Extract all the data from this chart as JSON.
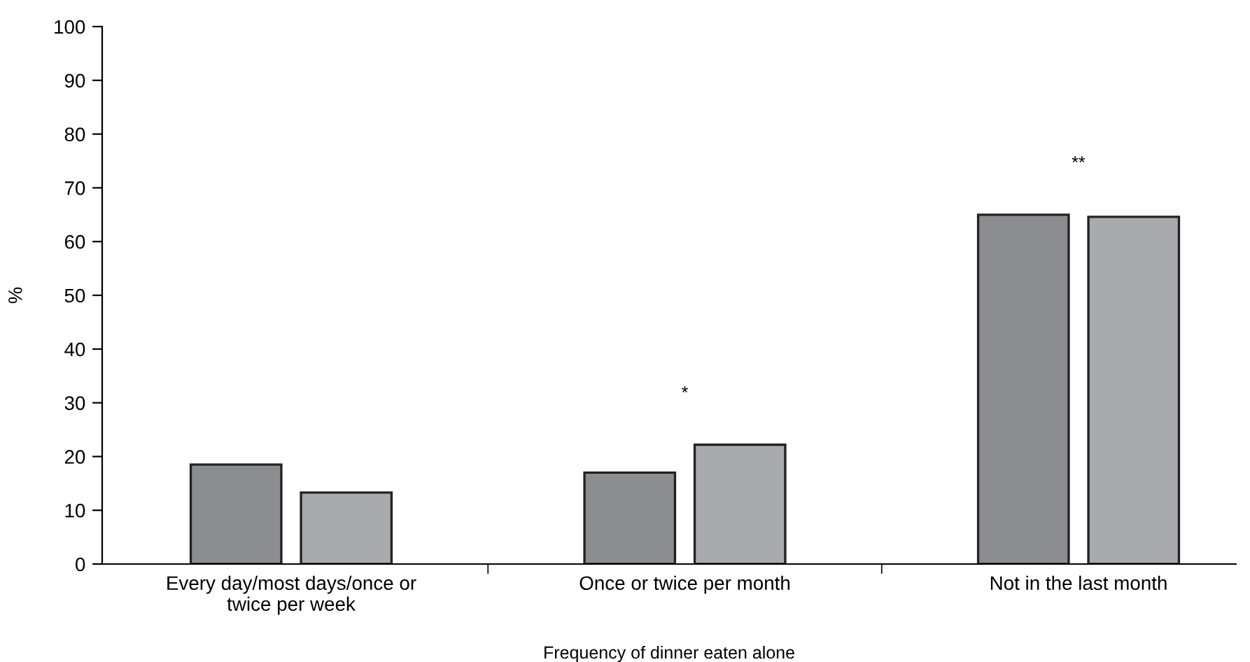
{
  "chart_data": {
    "type": "bar",
    "xlabel": "Frequency of dinner eaten alone",
    "ylabel": "%",
    "categories": [
      "Every day/most days/once or\ntwice per week",
      "Once or twice per month",
      "Not in the last month"
    ],
    "series": [
      {
        "color": "#8c8d91",
        "values": [
          18.5,
          17,
          65
        ]
      },
      {
        "color": "#a9aaad",
        "values": [
          13.3,
          22.2,
          64.6
        ]
      }
    ],
    "ylim": [
      0,
      100
    ],
    "yticks": [
      0,
      10,
      20,
      30,
      40,
      50,
      60,
      70,
      80,
      90,
      100
    ],
    "grid": false,
    "legend": false,
    "annotations": [
      "*",
      "**"
    ]
  }
}
